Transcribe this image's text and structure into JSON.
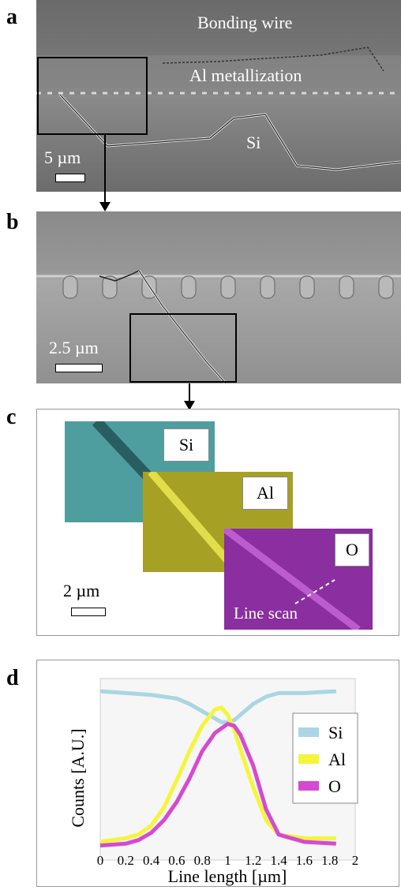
{
  "panels": {
    "a": {
      "letter": "a",
      "label_bonding": "Bonding wire",
      "label_metallization": "Al metallization",
      "label_si": "Si",
      "scale": "5 µm"
    },
    "b": {
      "letter": "b",
      "scale": "2.5 µm"
    },
    "c": {
      "letter": "c",
      "map_si": "Si",
      "map_al": "Al",
      "map_o": "O",
      "line_scan": "Line scan",
      "scale": "2 µm"
    },
    "d": {
      "letter": "d"
    }
  },
  "colors": {
    "si_map": "#4e9ea0",
    "al_map": "#a6a124",
    "o_map": "#8a2ea0",
    "si_line": "#a9d6e2",
    "al_line": "#f5f53a",
    "o_line": "#d44ad0"
  },
  "chart_data": {
    "type": "line",
    "xlabel": "Line length [µm]",
    "ylabel": "Counts [A.U.]",
    "xlim": [
      0,
      2
    ],
    "xticks": [
      "0",
      "0.2",
      "0.4",
      "0.6",
      "0.8",
      "1",
      "1.2",
      "1.4",
      "1.6",
      "1.8",
      "2"
    ],
    "legend_position": "right",
    "series": [
      {
        "name": "Si",
        "color": "#a9d6e2",
        "x": [
          0,
          0.2,
          0.4,
          0.6,
          0.7,
          0.8,
          0.9,
          0.95,
          1.0,
          1.05,
          1.1,
          1.2,
          1.3,
          1.4,
          1.6,
          1.85
        ],
        "y": [
          0.93,
          0.92,
          0.91,
          0.89,
          0.86,
          0.82,
          0.78,
          0.76,
          0.76,
          0.77,
          0.8,
          0.86,
          0.9,
          0.92,
          0.92,
          0.93
        ]
      },
      {
        "name": "Al",
        "color": "#f5f53a",
        "x": [
          0,
          0.2,
          0.3,
          0.4,
          0.5,
          0.6,
          0.7,
          0.8,
          0.9,
          0.95,
          1.0,
          1.05,
          1.1,
          1.2,
          1.3,
          1.4,
          1.6,
          1.85
        ],
        "y": [
          0.1,
          0.12,
          0.14,
          0.19,
          0.29,
          0.44,
          0.6,
          0.74,
          0.83,
          0.84,
          0.8,
          0.72,
          0.61,
          0.4,
          0.22,
          0.14,
          0.12,
          0.12
        ]
      },
      {
        "name": "O",
        "color": "#d44ad0",
        "x": [
          0,
          0.2,
          0.3,
          0.4,
          0.5,
          0.6,
          0.7,
          0.8,
          0.9,
          1.0,
          1.05,
          1.1,
          1.2,
          1.3,
          1.4,
          1.6,
          1.85
        ],
        "y": [
          0.08,
          0.09,
          0.11,
          0.15,
          0.22,
          0.32,
          0.45,
          0.6,
          0.7,
          0.75,
          0.74,
          0.69,
          0.52,
          0.28,
          0.14,
          0.1,
          0.09
        ]
      }
    ]
  }
}
